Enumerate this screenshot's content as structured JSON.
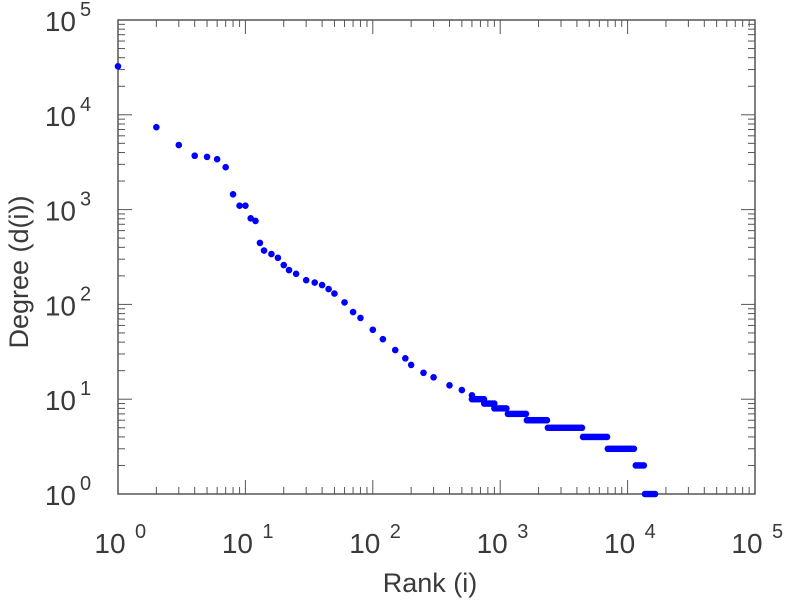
{
  "chart_data": {
    "type": "scatter",
    "title": "",
    "xlabel": "Rank (i)",
    "ylabel": "Degree (d(i))",
    "xscale": "log",
    "yscale": "log",
    "xlim": [
      1,
      100000
    ],
    "ylim": [
      1,
      100000
    ],
    "x_ticks": [
      {
        "base": "10",
        "exp": "0"
      },
      {
        "base": "10",
        "exp": "1"
      },
      {
        "base": "10",
        "exp": "2"
      },
      {
        "base": "10",
        "exp": "3"
      },
      {
        "base": "10",
        "exp": "4"
      },
      {
        "base": "10",
        "exp": "5"
      }
    ],
    "y_ticks": [
      {
        "base": "10",
        "exp": "0"
      },
      {
        "base": "10",
        "exp": "1"
      },
      {
        "base": "10",
        "exp": "2"
      },
      {
        "base": "10",
        "exp": "3"
      },
      {
        "base": "10",
        "exp": "4"
      },
      {
        "base": "10",
        "exp": "5"
      }
    ],
    "marker_color": "#0000ff",
    "points": [
      [
        1,
        32500
      ],
      [
        2,
        7400
      ],
      [
        3,
        4800
      ],
      [
        4,
        3700
      ],
      [
        5,
        3600
      ],
      [
        6,
        3400
      ],
      [
        7,
        2800
      ],
      [
        8,
        1450
      ],
      [
        9,
        1100
      ],
      [
        10,
        1100
      ],
      [
        11,
        810
      ],
      [
        12,
        760
      ],
      [
        13,
        445
      ],
      [
        14,
        370
      ],
      [
        16,
        340
      ],
      [
        18,
        310
      ],
      [
        20,
        260
      ],
      [
        22,
        230
      ],
      [
        25,
        210
      ],
      [
        30,
        180
      ],
      [
        35,
        170
      ],
      [
        40,
        160
      ],
      [
        45,
        145
      ],
      [
        50,
        130
      ],
      [
        60,
        105
      ],
      [
        70,
        83
      ],
      [
        80,
        72
      ],
      [
        100,
        54
      ],
      [
        120,
        43
      ],
      [
        150,
        33
      ],
      [
        180,
        27
      ],
      [
        200,
        23
      ],
      [
        250,
        19
      ],
      [
        300,
        17
      ],
      [
        400,
        14
      ],
      [
        500,
        12.5
      ],
      [
        600,
        11
      ]
    ],
    "plateaus": [
      {
        "degree": 10,
        "rank_start": 600,
        "rank_end": 750
      },
      {
        "degree": 9,
        "rank_start": 750,
        "rank_end": 900
      },
      {
        "degree": 8,
        "rank_start": 900,
        "rank_end": 1150
      },
      {
        "degree": 7,
        "rank_start": 1150,
        "rank_end": 1620
      },
      {
        "degree": 6,
        "rank_start": 1620,
        "rank_end": 2370
      },
      {
        "degree": 5,
        "rank_start": 2370,
        "rank_end": 4470
      },
      {
        "degree": 4,
        "rank_start": 4470,
        "rank_end": 7000
      },
      {
        "degree": 3,
        "rank_start": 7000,
        "rank_end": 11600
      },
      {
        "degree": 2,
        "rank_start": 11600,
        "rank_end": 13700
      },
      {
        "degree": 1,
        "rank_start": 13700,
        "rank_end": 17000
      }
    ]
  }
}
